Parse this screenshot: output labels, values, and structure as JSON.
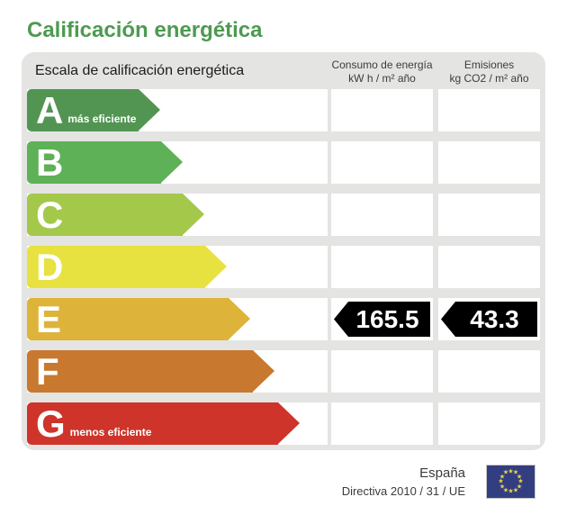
{
  "title": "Calificación energética",
  "panel": {
    "scale_header": "Escala de calificación energética",
    "columns": [
      {
        "title": "Consumo de energía",
        "unit": "kW h / m² año"
      },
      {
        "title": "Emisiones",
        "unit": "kg CO2 / m² año"
      }
    ]
  },
  "ratings": [
    {
      "letter": "A",
      "note": "más eficiente",
      "color": "#529553",
      "arrow_width": 148
    },
    {
      "letter": "B",
      "note": "",
      "color": "#5EB156",
      "arrow_width": 173
    },
    {
      "letter": "C",
      "note": "",
      "color": "#A4C84A",
      "arrow_width": 197
    },
    {
      "letter": "D",
      "note": "",
      "color": "#E7E23F",
      "arrow_width": 222
    },
    {
      "letter": "E",
      "note": "",
      "color": "#DDB33A",
      "arrow_width": 248
    },
    {
      "letter": "F",
      "note": "",
      "color": "#C9782F",
      "arrow_width": 275
    },
    {
      "letter": "G",
      "note": "menos eficiente",
      "color": "#CE3429",
      "arrow_width": 303
    }
  ],
  "current_rating": {
    "letter": "E",
    "consumption": "165.5",
    "emissions": "43.3"
  },
  "footer": {
    "country": "España",
    "directive": "Directiva 2010 / 31 / UE"
  },
  "colors": {
    "title_green": "#4D9A51",
    "panel_bg": "#E4E4E3",
    "cell_bg": "#FFFFFF",
    "tag_bg": "#000000",
    "tag_text": "#FFFFFF",
    "header_text": "#3C3C3B",
    "flag_blue": "#333E80",
    "flag_star": "#EFD93F"
  },
  "chart_data": {
    "type": "bar",
    "title": "Calificación energética",
    "subtitle": "Escala de calificación energética",
    "categories": [
      "A",
      "B",
      "C",
      "D",
      "E",
      "F",
      "G"
    ],
    "category_colors": [
      "#529553",
      "#5EB156",
      "#A4C84A",
      "#E7E23F",
      "#DDB33A",
      "#C9782F",
      "#CE3429"
    ],
    "annotations": [
      "A = más eficiente",
      "G = menos eficiente",
      "España",
      "Directiva 2010 / 31 / UE"
    ],
    "rating": "E",
    "series": [
      {
        "name": "Consumo de energía (kW h / m² año)",
        "rating": "E",
        "value": 165.5
      },
      {
        "name": "Emisiones (kg CO2 / m² año)",
        "rating": "E",
        "value": 43.3
      }
    ],
    "legend_position": "top",
    "grid": false
  }
}
